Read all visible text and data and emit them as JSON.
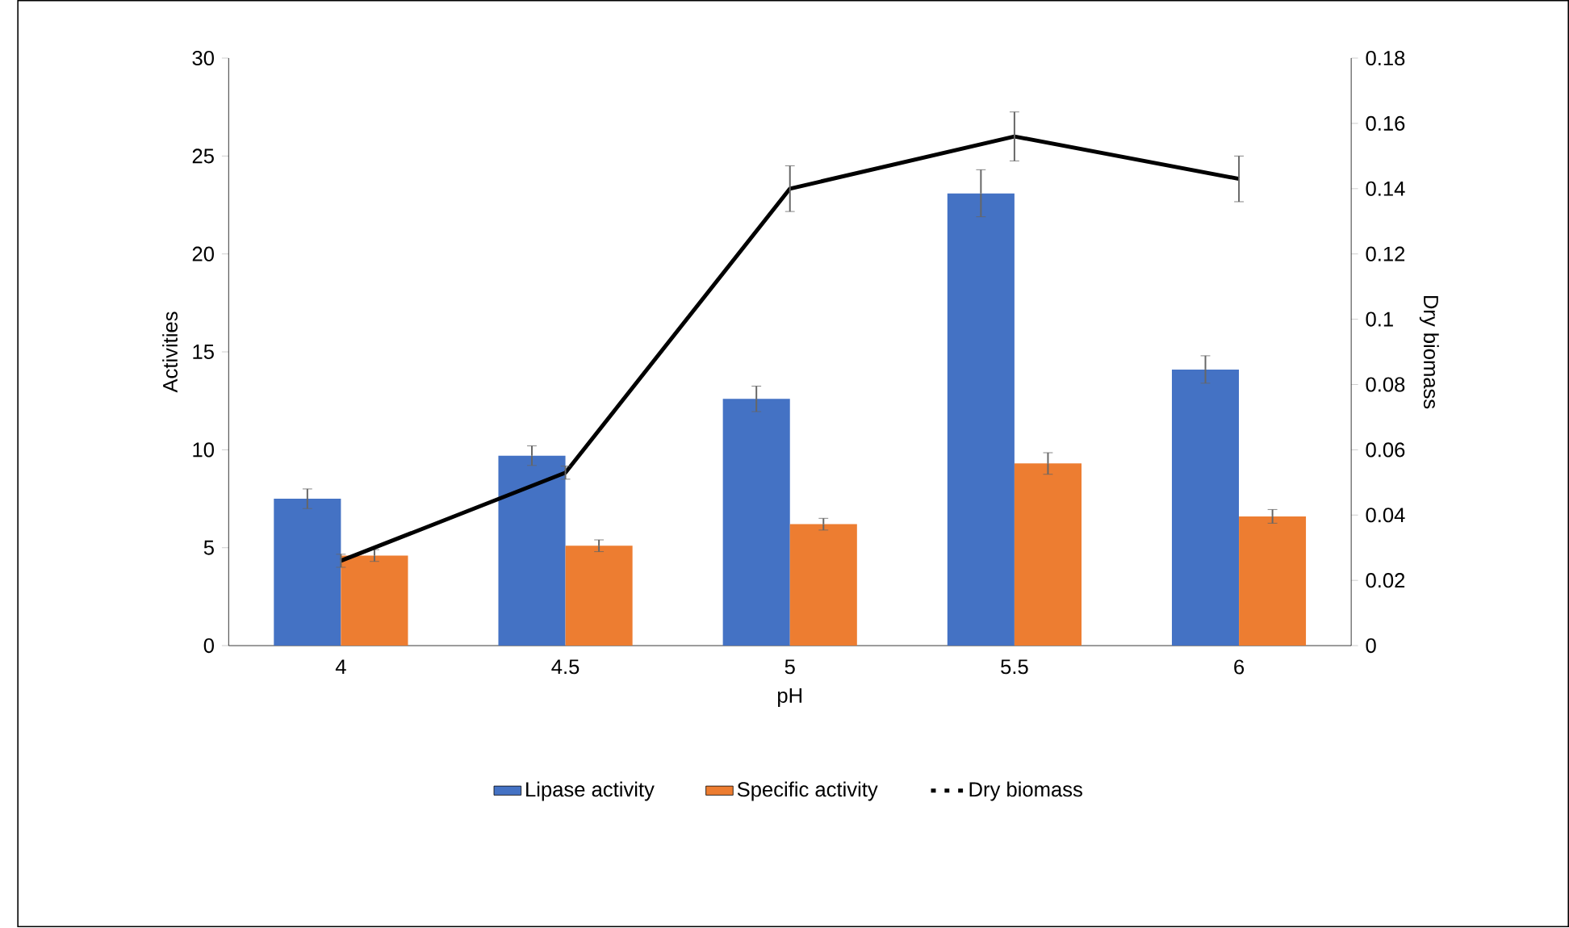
{
  "chart_data": {
    "type": "bar",
    "xlabel": "pH",
    "ylabel": "Activities",
    "y2label": "Dry biomass",
    "categories": [
      "4",
      "4.5",
      "5",
      "5.5",
      "6"
    ],
    "series": [
      {
        "name": "Lipase activity",
        "color": "#4472c4",
        "values": [
          7.5,
          9.7,
          12.6,
          23.1,
          14.1
        ],
        "errors": [
          0.5,
          0.5,
          0.65,
          1.2,
          0.7
        ]
      },
      {
        "name": "Specific activity",
        "color": "#ed7d31",
        "values": [
          4.6,
          5.1,
          6.2,
          9.3,
          6.6
        ],
        "errors": [
          0.3,
          0.3,
          0.3,
          0.55,
          0.35
        ]
      },
      {
        "name": "Dry biomass",
        "type": "line",
        "axis": "y2",
        "color": "#000000",
        "values": [
          0.026,
          0.053,
          0.14,
          0.156,
          0.143
        ],
        "errors": [
          0.002,
          0.002,
          0.007,
          0.0075,
          0.007
        ]
      }
    ],
    "ylim": [
      0,
      30
    ],
    "yticks": [
      0,
      5,
      10,
      15,
      20,
      25,
      30
    ],
    "y2lim": [
      0,
      0.18
    ],
    "y2ticks": [
      0,
      0.02,
      0.04,
      0.06,
      0.08,
      0.1,
      0.12,
      0.14,
      0.16,
      0.18
    ],
    "legend": "bottom",
    "marker": "none",
    "line_style": "solid"
  }
}
